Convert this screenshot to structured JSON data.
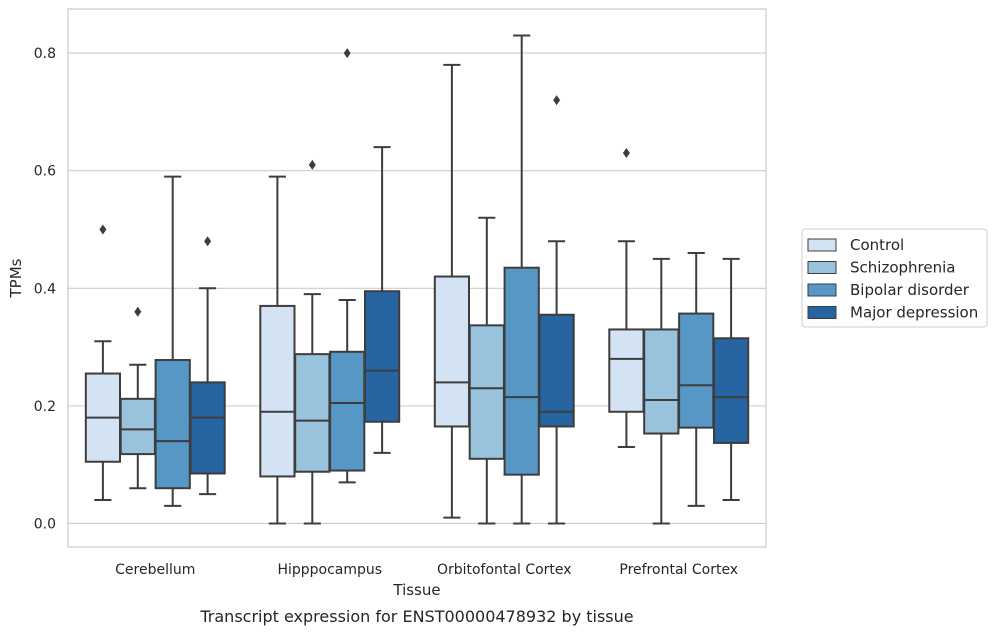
{
  "chart_data": {
    "type": "box",
    "title": "",
    "caption": "Transcript expression for ENST00000478932 by tissue",
    "xlabel": "Tissue",
    "ylabel": "TPMs",
    "ylim": [
      -0.04,
      0.875
    ],
    "yticks": [
      0.0,
      0.2,
      0.4,
      0.6,
      0.8
    ],
    "ytick_labels": [
      "0.0",
      "0.2",
      "0.4",
      "0.6",
      "0.8"
    ],
    "grid": "horizontal",
    "legend_position": "right",
    "categories": [
      "Cerebellum",
      "Hipppocampus",
      "Orbitofontal Cortex",
      "Prefrontal Cortex"
    ],
    "series": [
      {
        "name": "Control",
        "color": "#d4e3f3",
        "boxes": [
          {
            "whislo": 0.04,
            "q1": 0.105,
            "med": 0.18,
            "q3": 0.255,
            "whishi": 0.31,
            "fliers": [
              0.5
            ]
          },
          {
            "whislo": 0.0,
            "q1": 0.08,
            "med": 0.19,
            "q3": 0.37,
            "whishi": 0.59,
            "fliers": []
          },
          {
            "whislo": 0.01,
            "q1": 0.165,
            "med": 0.24,
            "q3": 0.42,
            "whishi": 0.78,
            "fliers": []
          },
          {
            "whislo": 0.13,
            "q1": 0.19,
            "med": 0.28,
            "q3": 0.33,
            "whishi": 0.48,
            "fliers": [
              0.63
            ]
          }
        ]
      },
      {
        "name": "Schizophrenia",
        "color": "#99c2dc",
        "boxes": [
          {
            "whislo": 0.06,
            "q1": 0.118,
            "med": 0.16,
            "q3": 0.212,
            "whishi": 0.27,
            "fliers": [
              0.36
            ]
          },
          {
            "whislo": 0.0,
            "q1": 0.088,
            "med": 0.175,
            "q3": 0.288,
            "whishi": 0.39,
            "fliers": [
              0.61
            ]
          },
          {
            "whislo": 0.0,
            "q1": 0.11,
            "med": 0.23,
            "q3": 0.337,
            "whishi": 0.52,
            "fliers": []
          },
          {
            "whislo": 0.0,
            "q1": 0.153,
            "med": 0.21,
            "q3": 0.33,
            "whishi": 0.45,
            "fliers": []
          }
        ]
      },
      {
        "name": "Bipolar disorder",
        "color": "#5697c6",
        "boxes": [
          {
            "whislo": 0.03,
            "q1": 0.06,
            "med": 0.14,
            "q3": 0.278,
            "whishi": 0.59,
            "fliers": []
          },
          {
            "whislo": 0.07,
            "q1": 0.09,
            "med": 0.205,
            "q3": 0.292,
            "whishi": 0.38,
            "fliers": [
              0.8
            ]
          },
          {
            "whislo": 0.0,
            "q1": 0.083,
            "med": 0.215,
            "q3": 0.435,
            "whishi": 0.83,
            "fliers": []
          },
          {
            "whislo": 0.03,
            "q1": 0.163,
            "med": 0.235,
            "q3": 0.357,
            "whishi": 0.46,
            "fliers": []
          }
        ]
      },
      {
        "name": "Major depression",
        "color": "#2764a2",
        "boxes": [
          {
            "whislo": 0.05,
            "q1": 0.085,
            "med": 0.18,
            "q3": 0.24,
            "whishi": 0.4,
            "fliers": [
              0.48
            ]
          },
          {
            "whislo": 0.12,
            "q1": 0.173,
            "med": 0.26,
            "q3": 0.395,
            "whishi": 0.64,
            "fliers": []
          },
          {
            "whislo": 0.0,
            "q1": 0.165,
            "med": 0.19,
            "q3": 0.355,
            "whishi": 0.48,
            "fliers": [
              0.72
            ]
          },
          {
            "whislo": 0.04,
            "q1": 0.137,
            "med": 0.215,
            "q3": 0.315,
            "whishi": 0.45,
            "fliers": []
          }
        ]
      }
    ]
  }
}
